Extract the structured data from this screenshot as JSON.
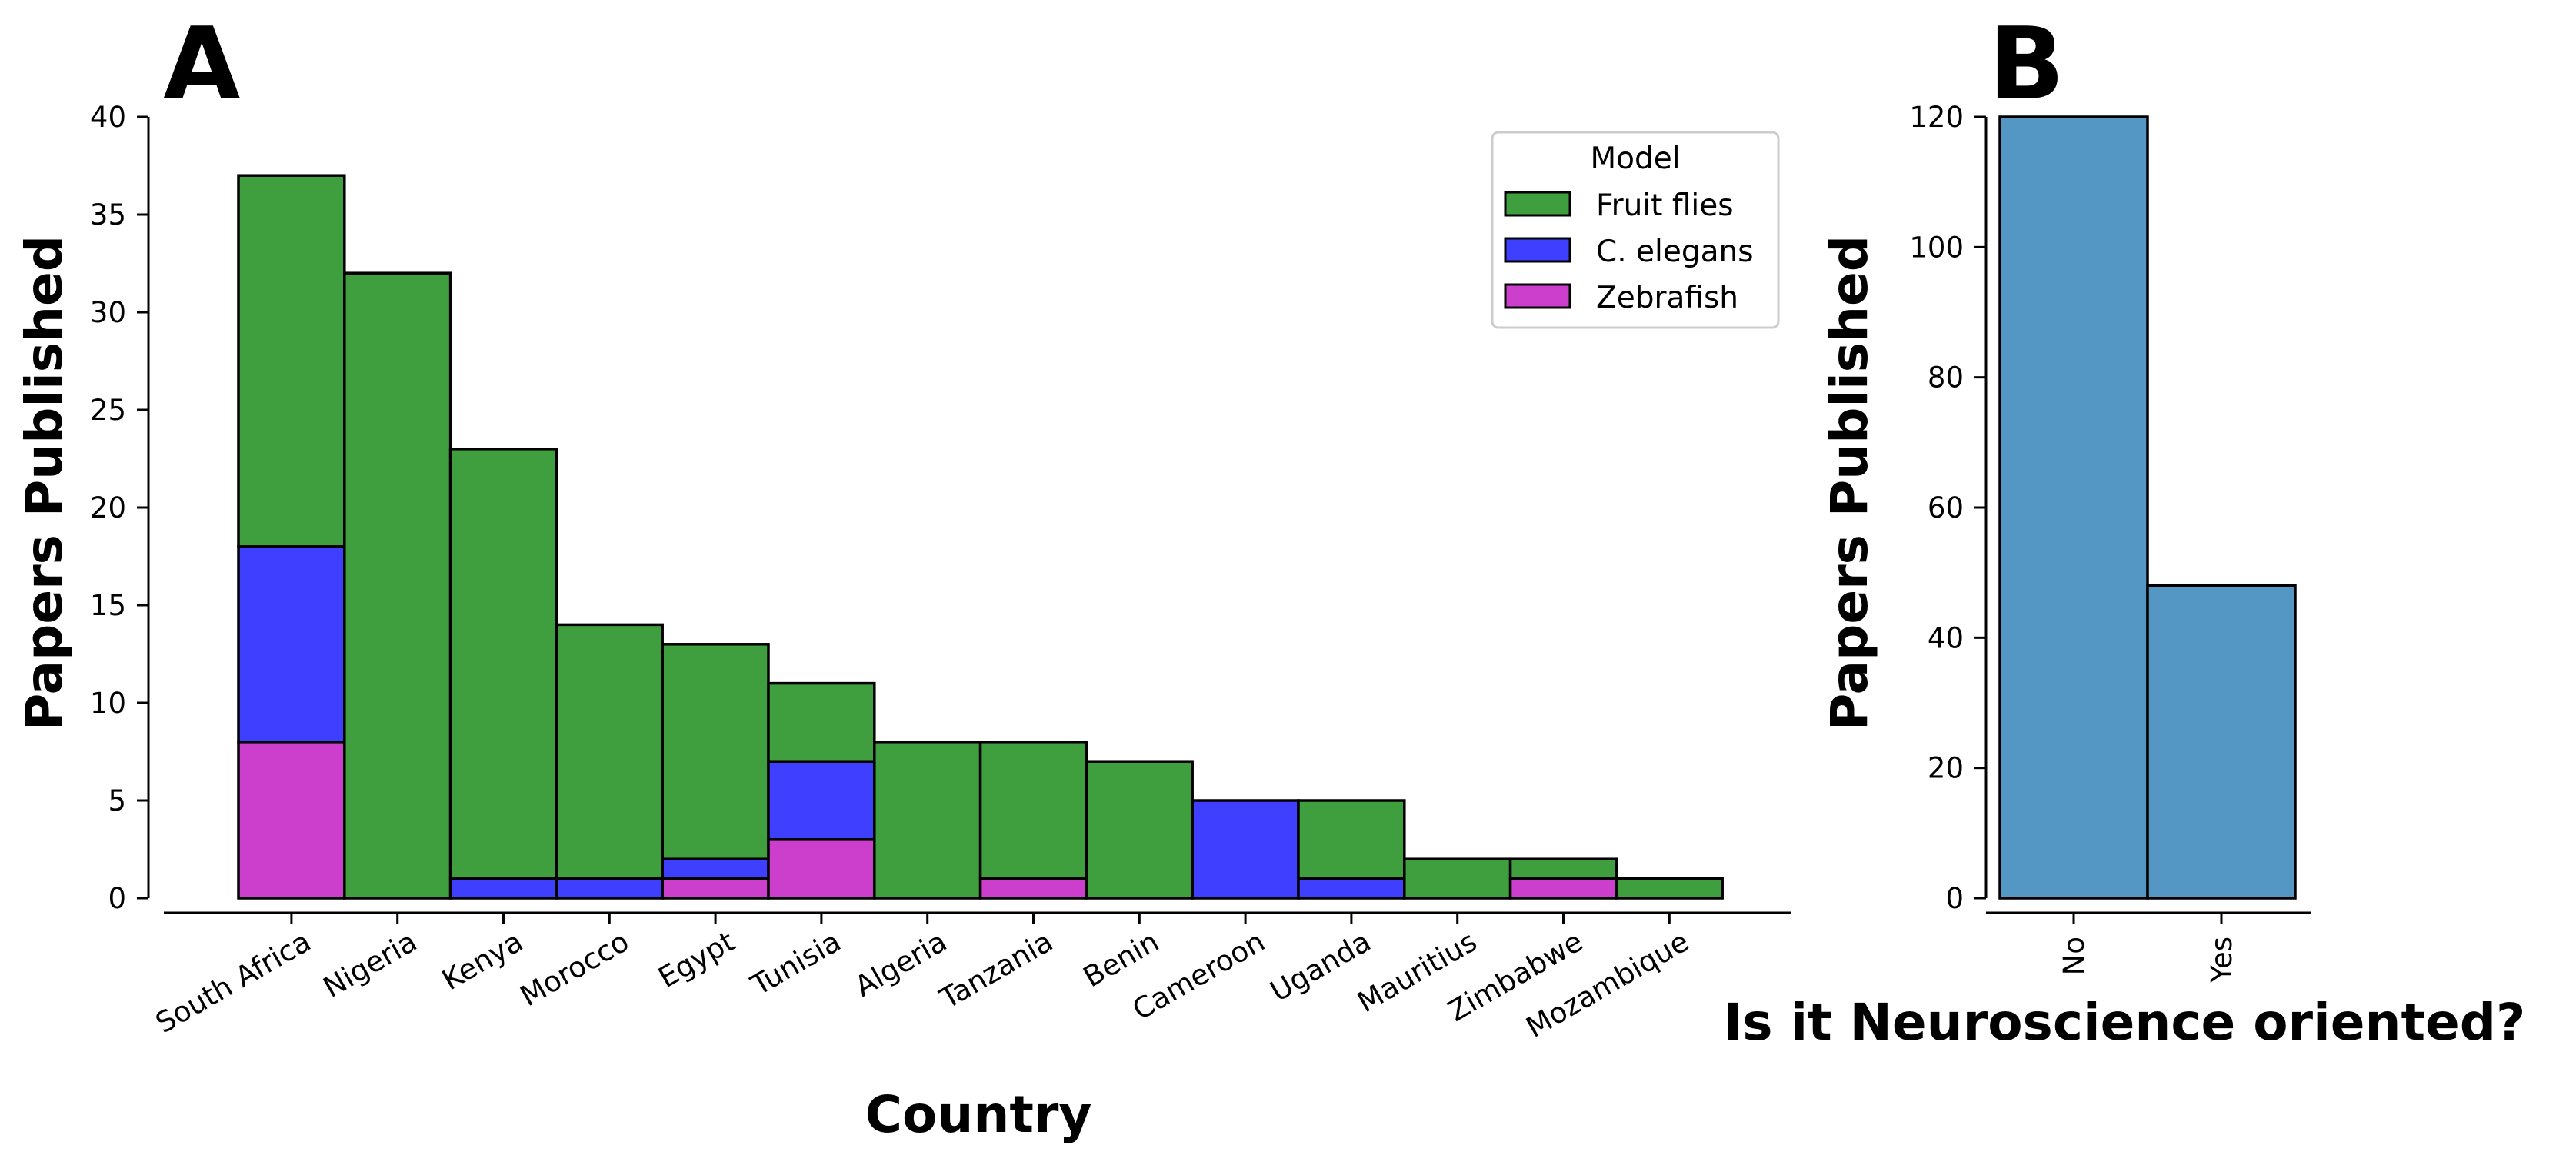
{
  "chart_data": [
    {
      "panel": "A",
      "type": "bar",
      "stacked": true,
      "xlabel": "Country",
      "ylabel": "Papers Published",
      "ylim": [
        0,
        40
      ],
      "yticks": [
        0,
        5,
        10,
        15,
        20,
        25,
        30,
        35,
        40
      ],
      "categories": [
        "South Africa",
        "Nigeria",
        "Kenya",
        "Morocco",
        "Egypt",
        "Tunisia",
        "Algeria",
        "Tanzania",
        "Benin",
        "Cameroon",
        "Uganda",
        "Mauritius",
        "Zimbabwe",
        "Mozambique"
      ],
      "legend": {
        "title": "Model",
        "position": "top-right"
      },
      "series": [
        {
          "name": "Zebrafish",
          "color": "#cc3fcc",
          "values": [
            8,
            0,
            0,
            0,
            1,
            3,
            0,
            1,
            0,
            0,
            0,
            0,
            1,
            0
          ]
        },
        {
          "name": "C. elegans",
          "color": "#3f3fff",
          "values": [
            10,
            0,
            1,
            1,
            1,
            4,
            0,
            0,
            0,
            5,
            1,
            0,
            0,
            0
          ]
        },
        {
          "name": "Fruit flies",
          "color": "#3f9f3f",
          "values": [
            19,
            32,
            22,
            13,
            11,
            4,
            8,
            7,
            7,
            0,
            4,
            2,
            1,
            1
          ]
        }
      ],
      "legend_order": [
        "Fruit flies",
        "C. elegans",
        "Zebrafish"
      ],
      "grid": false
    },
    {
      "panel": "B",
      "type": "bar",
      "xlabel": "Is it Neuroscience oriented?",
      "ylabel": "Papers Published",
      "ylim": [
        0,
        120
      ],
      "yticks": [
        0,
        20,
        40,
        60,
        80,
        100,
        120
      ],
      "categories": [
        "No",
        "Yes"
      ],
      "values": [
        120,
        48
      ],
      "color": "#5497c5",
      "grid": false
    }
  ]
}
